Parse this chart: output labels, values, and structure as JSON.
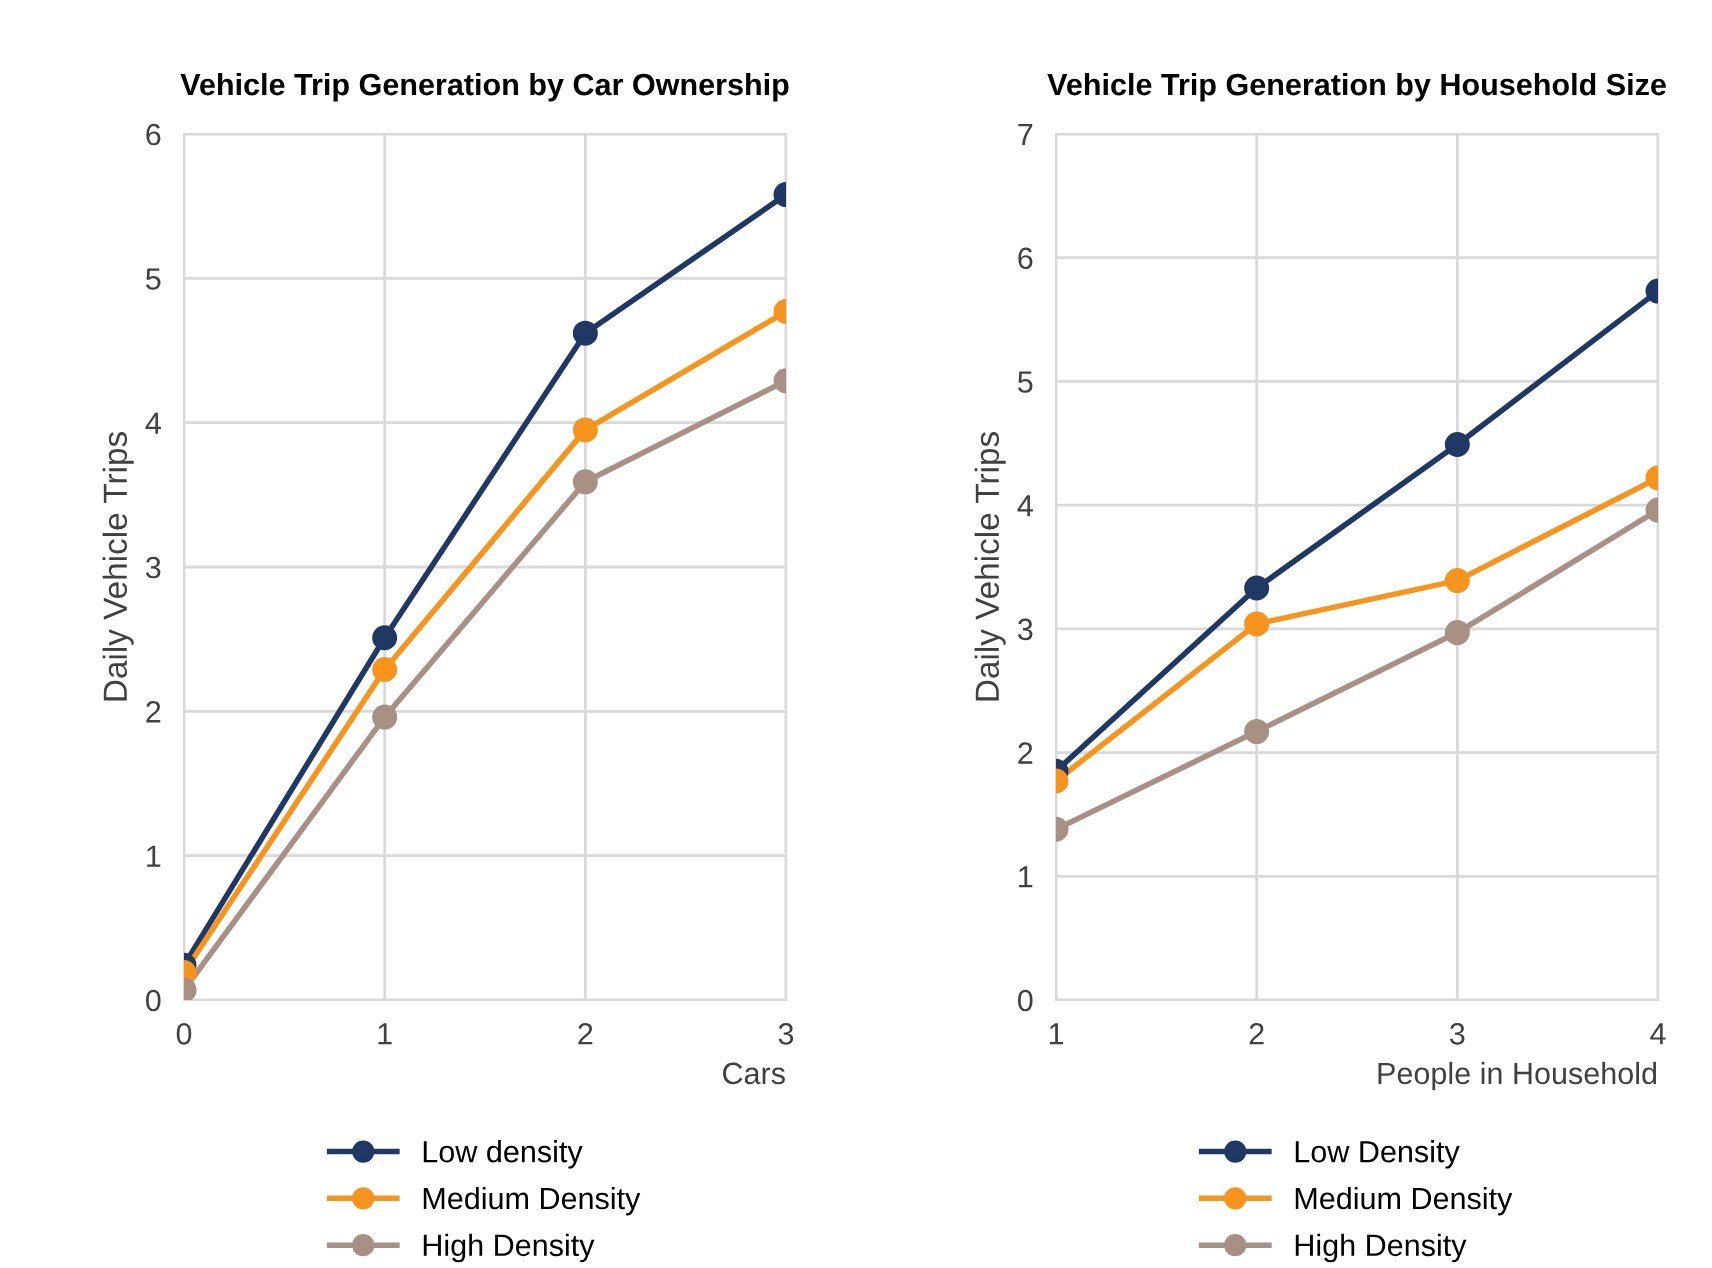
{
  "chart_data": [
    {
      "type": "line",
      "title": "Vehicle Trip Generation by Car Ownership",
      "xlabel": "Cars",
      "ylabel": "Daily Vehicle Trips",
      "x": [
        0,
        1,
        2,
        3
      ],
      "xlim": [
        0,
        3
      ],
      "xticks": [
        0,
        1,
        2,
        3
      ],
      "ylim": [
        0,
        6
      ],
      "yticks": [
        0,
        1,
        2,
        3,
        4,
        5,
        6
      ],
      "grid": true,
      "legend": "bottom",
      "marker": "circle",
      "line_style": "solid",
      "series": [
        {
          "name": "Low density",
          "color": "#1f3864",
          "values": [
            0.24,
            2.51,
            4.62,
            5.58
          ]
        },
        {
          "name": "Medium Density",
          "color": "#f7941d",
          "values": [
            0.19,
            2.29,
            3.95,
            4.77
          ]
        },
        {
          "name": "High Density",
          "color": "#a89084",
          "values": [
            0.07,
            1.96,
            3.59,
            4.29
          ]
        }
      ]
    },
    {
      "type": "line",
      "title": "Vehicle Trip Generation by Household Size",
      "xlabel": "People in Household",
      "ylabel": "Daily Vehicle Trips",
      "x": [
        1,
        2,
        3,
        4
      ],
      "xlim": [
        1,
        4
      ],
      "xticks": [
        1,
        2,
        3,
        4
      ],
      "ylim": [
        0,
        7
      ],
      "yticks": [
        0,
        1,
        2,
        3,
        4,
        5,
        6,
        7
      ],
      "grid": true,
      "legend": "bottom",
      "marker": "circle",
      "line_style": "solid",
      "series": [
        {
          "name": "Low Density",
          "color": "#1f3864",
          "values": [
            1.85,
            3.33,
            4.49,
            5.73
          ]
        },
        {
          "name": "Medium Density",
          "color": "#f7941d",
          "values": [
            1.77,
            3.04,
            3.39,
            4.22
          ]
        },
        {
          "name": "High Density",
          "color": "#a89084",
          "values": [
            1.38,
            2.17,
            2.97,
            3.96
          ]
        }
      ]
    }
  ]
}
